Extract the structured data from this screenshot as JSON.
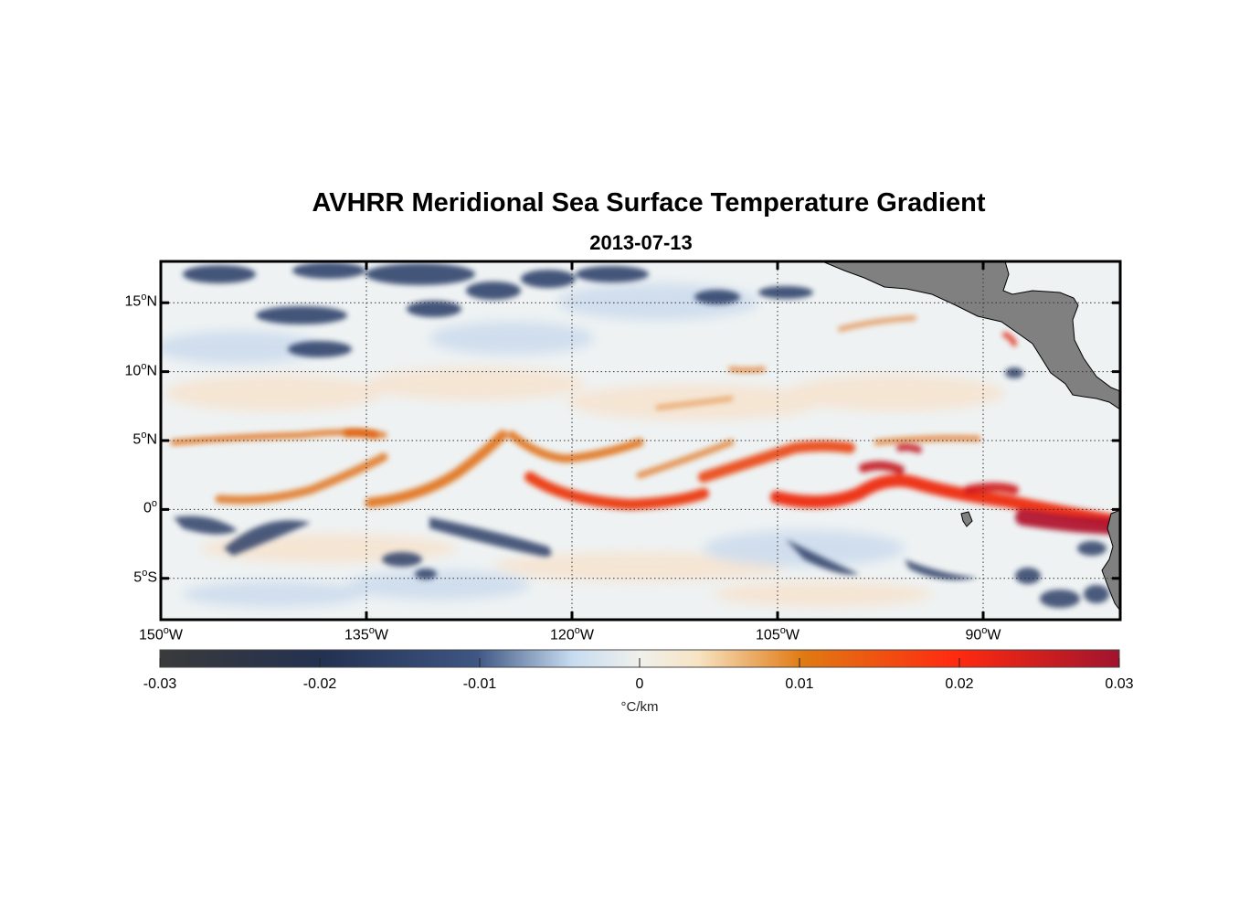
{
  "title": "AVHRR Meridional Sea Surface Temperature Gradient",
  "subtitle": "2013-07-13",
  "map": {
    "lon_range": [
      -150,
      -80
    ],
    "lat_range": [
      -8,
      18
    ],
    "lon_ticks": [
      {
        "value": -150,
        "num": "150",
        "hemi": "W"
      },
      {
        "value": -135,
        "num": "135",
        "hemi": "W"
      },
      {
        "value": -120,
        "num": "120",
        "hemi": "W"
      },
      {
        "value": -105,
        "num": "105",
        "hemi": "W"
      },
      {
        "value": -90,
        "num": "90",
        "hemi": "W"
      }
    ],
    "lat_ticks": [
      {
        "value": 15,
        "num": "15",
        "hemi": "N"
      },
      {
        "value": 10,
        "num": "10",
        "hemi": "N"
      },
      {
        "value": 5,
        "num": "5",
        "hemi": "N"
      },
      {
        "value": 0,
        "num": "0",
        "hemi": ""
      },
      {
        "value": -5,
        "num": "5",
        "hemi": "S"
      }
    ],
    "degree_symbol": "o",
    "land_color": "#808080"
  },
  "colorbar": {
    "min": -0.03,
    "max": 0.03,
    "ticks": [
      "-0.03",
      "-0.02",
      "-0.01",
      "0",
      "0.01",
      "0.02",
      "0.03"
    ],
    "units": "°C/km",
    "colors": [
      "#3a3a3a",
      "#233152",
      "#3e5683",
      "#c7dcf0",
      "#f0f0ec",
      "#f7e4c4",
      "#e07a12",
      "#ff2a10",
      "#a0142e"
    ]
  }
}
